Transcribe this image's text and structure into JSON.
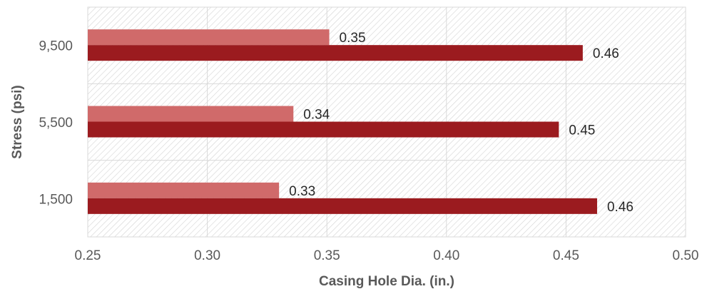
{
  "chart_data": {
    "type": "bar",
    "orientation": "horizontal",
    "categories": [
      "1,500",
      "5,500",
      "9,500"
    ],
    "series": [
      {
        "values": [
          0.33,
          0.34,
          0.35
        ],
        "color": "#d06a6a"
      },
      {
        "values": [
          0.46,
          0.45,
          0.46
        ],
        "color": "#9b1b1f"
      }
    ],
    "bar_values": [
      [
        0.33,
        0.336,
        0.351
      ],
      [
        0.463,
        0.447,
        0.457
      ]
    ],
    "xlabel": "Casing Hole Dia. (in.)",
    "ylabel": "Stress (psi)",
    "xlim": [
      0.25,
      0.5
    ],
    "x_ticks": [
      "0.25",
      "0.30",
      "0.35",
      "0.40",
      "0.45",
      "0.50"
    ],
    "grid": true,
    "background": "hatched",
    "legend": "none"
  }
}
